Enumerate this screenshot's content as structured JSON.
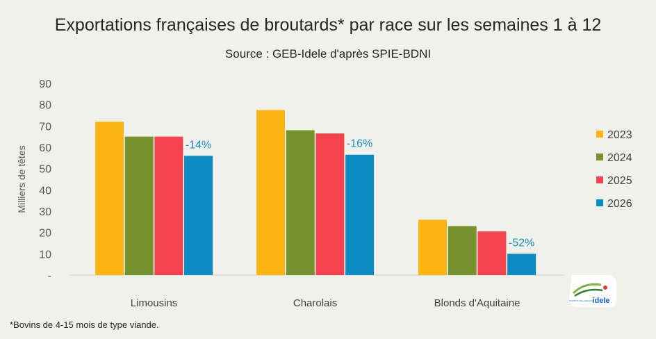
{
  "chart_data": {
    "type": "bar",
    "title": "Exportations françaises de broutards* par race sur les semaines 1 à 12",
    "subtitle": "Source : GEB-Idele d'après SPIE-BDNI",
    "ylabel": "Milliers de têtes",
    "xlabel": "",
    "ylim": [
      0,
      90
    ],
    "yticks": [
      "-",
      "10",
      "20",
      "30",
      "40",
      "50",
      "60",
      "70",
      "80",
      "90"
    ],
    "categories": [
      "Limousins",
      "Charolais",
      "Blonds d'Aquitaine"
    ],
    "series": [
      {
        "name": "2023",
        "color": "#fdb515",
        "values": [
          72,
          77.5,
          26
        ]
      },
      {
        "name": "2024",
        "color": "#76922d",
        "values": [
          65,
          68,
          23
        ]
      },
      {
        "name": "2025",
        "color": "#f4424f",
        "values": [
          65,
          66.5,
          20.5
        ]
      },
      {
        "name": "2026",
        "color": "#0a8cc2",
        "values": [
          56,
          56.5,
          10
        ]
      }
    ],
    "annotations": [
      "-14%",
      "-16%",
      "-52%"
    ],
    "annotation_color": "#1a8fc0",
    "legend": "right",
    "grid": false
  },
  "footnote": "*Bovins de 4-15 mois de type viande.",
  "logo": {
    "text": "idele",
    "small_text": "INSTITUT DE L'ÉLEVAGE"
  }
}
